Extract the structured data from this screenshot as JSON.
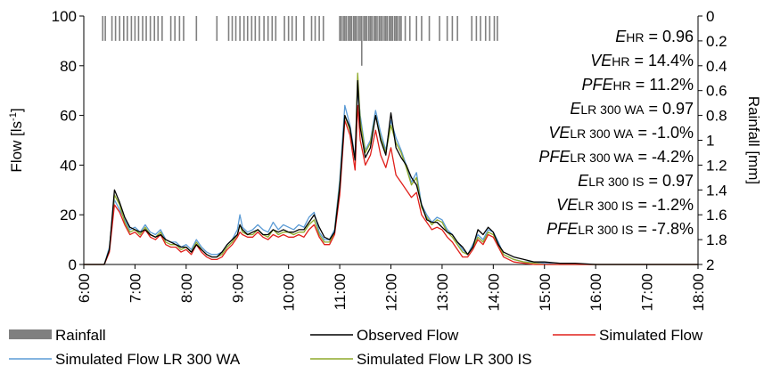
{
  "chart_data": {
    "type": "line",
    "y_axis_left": {
      "label": "Flow [ls",
      "label_sup": "-1",
      "label_tail": "]",
      "ylim": [
        0,
        100
      ],
      "ticks": [
        "0",
        "20",
        "40",
        "60",
        "80",
        "100"
      ]
    },
    "y_axis_right": {
      "label": "Rainfall [mm]",
      "ylim": [
        0,
        2
      ],
      "reversed": true,
      "ticks": [
        "0",
        "0.2",
        "0.4",
        "0.6",
        "0.8",
        "1",
        "1.2",
        "1.4",
        "1.6",
        "1.8",
        "2"
      ]
    },
    "x_axis": {
      "range_hours": [
        6,
        18
      ],
      "ticks": [
        "6:00",
        "7:00",
        "8:00",
        "9:00",
        "10:00",
        "11:00",
        "12:00",
        "13:00",
        "14:00",
        "15:00",
        "16:00",
        "17:00",
        "18:00"
      ],
      "rotated": true
    },
    "grid": false,
    "stats": [
      {
        "italic": "E",
        "sub": "HR",
        "value": " = 0.96"
      },
      {
        "italic": "VE",
        "sub": "HR",
        "value": " = 14.4%"
      },
      {
        "italic": "PFE",
        "sub": "HR",
        "value": " = 11.2%"
      },
      {
        "italic": "E",
        "sub": "LR 300 WA",
        "value": " = 0.97"
      },
      {
        "italic": "VE",
        "sub": "LR 300 WA",
        "value": " = -1.0%"
      },
      {
        "italic": "PFE",
        "sub": "LR 300 WA",
        "value": " = -4.2%"
      },
      {
        "italic": "E",
        "sub": "LR 300 IS",
        "value": " = 0.97"
      },
      {
        "italic": "VE",
        "sub": "LR 300 IS",
        "value": " = -1.2%"
      },
      {
        "italic": "PFE",
        "sub": "LR 300 IS",
        "value": " = -7.8%"
      }
    ],
    "legend": [
      {
        "name": "Rainfall",
        "color": "#808080",
        "kind": "bar"
      },
      {
        "name": "Observed Flow",
        "color": "#000000",
        "kind": "line"
      },
      {
        "name": "Simulated Flow",
        "color": "#e0201b",
        "kind": "line"
      },
      {
        "name": "Simulated Flow LR 300 WA",
        "color": "#5b9bd5",
        "kind": "line"
      },
      {
        "name": "Simulated Flow LR 300 IS",
        "color": "#8faa2b",
        "kind": "line"
      }
    ],
    "rainfall": {
      "name": "Rainfall",
      "color": "#808080",
      "times": [
        6.37,
        6.42,
        6.55,
        6.62,
        6.7,
        6.78,
        6.85,
        6.93,
        7.0,
        7.07,
        7.15,
        7.22,
        7.3,
        7.38,
        7.45,
        7.53,
        7.7,
        7.78,
        7.87,
        7.95,
        8.2,
        8.6,
        8.83,
        8.9,
        8.97,
        9.05,
        9.13,
        9.2,
        9.28,
        9.35,
        9.43,
        9.52,
        9.6,
        9.68,
        9.75,
        9.92,
        10.0,
        10.07,
        10.15,
        10.3,
        10.45,
        10.52,
        10.6,
        10.68,
        11.0,
        11.03,
        11.07,
        11.1,
        11.13,
        11.17,
        11.2,
        11.23,
        11.27,
        11.3,
        11.33,
        11.37,
        11.4,
        11.43,
        11.47,
        11.5,
        11.53,
        11.57,
        11.6,
        11.63,
        11.67,
        11.7,
        11.73,
        11.77,
        11.8,
        11.83,
        11.87,
        11.9,
        11.93,
        11.97,
        12.0,
        12.03,
        12.07,
        12.1,
        12.13,
        12.17,
        12.2,
        12.28,
        12.37,
        12.5,
        12.6,
        12.75,
        12.95,
        13.1,
        13.2,
        13.3,
        13.58,
        13.67,
        13.75,
        13.85,
        13.93,
        14.02,
        14.08
      ],
      "depths_mm": [
        0.2,
        0.2,
        0.2,
        0.2,
        0.2,
        0.2,
        0.2,
        0.2,
        0.2,
        0.2,
        0.2,
        0.2,
        0.2,
        0.2,
        0.2,
        0.2,
        0.2,
        0.2,
        0.2,
        0.2,
        0.2,
        0.2,
        0.2,
        0.2,
        0.2,
        0.2,
        0.2,
        0.2,
        0.2,
        0.2,
        0.2,
        0.2,
        0.2,
        0.2,
        0.2,
        0.2,
        0.2,
        0.2,
        0.2,
        0.2,
        0.2,
        0.2,
        0.2,
        0.2,
        0.2,
        0.2,
        0.2,
        0.2,
        0.2,
        0.2,
        0.2,
        0.2,
        0.2,
        0.2,
        0.2,
        0.2,
        0.2,
        0.4,
        0.2,
        0.2,
        0.2,
        0.2,
        0.2,
        0.2,
        0.2,
        0.2,
        0.2,
        0.2,
        0.2,
        0.2,
        0.2,
        0.2,
        0.2,
        0.2,
        0.2,
        0.2,
        0.2,
        0.2,
        0.2,
        0.2,
        0.2,
        0.2,
        0.2,
        0.2,
        0.2,
        0.2,
        0.2,
        0.2,
        0.2,
        0.2,
        0.2,
        0.2,
        0.2,
        0.2,
        0.2,
        0.2,
        0.2
      ]
    },
    "series": [
      {
        "name": "Simulated Flow LR 300 WA",
        "color": "#5b9bd5",
        "x": [
          6.0,
          6.4,
          6.5,
          6.6,
          6.7,
          6.8,
          6.9,
          7.0,
          7.1,
          7.2,
          7.3,
          7.4,
          7.5,
          7.6,
          7.7,
          7.8,
          7.9,
          8.0,
          8.1,
          8.2,
          8.3,
          8.4,
          8.5,
          8.6,
          8.7,
          8.8,
          8.9,
          9.0,
          9.05,
          9.1,
          9.2,
          9.3,
          9.4,
          9.5,
          9.6,
          9.7,
          9.8,
          9.9,
          10.0,
          10.1,
          10.2,
          10.3,
          10.4,
          10.5,
          10.6,
          10.7,
          10.8,
          10.9,
          11.0,
          11.1,
          11.2,
          11.3,
          11.35,
          11.4,
          11.5,
          11.6,
          11.7,
          11.8,
          11.9,
          12.0,
          12.1,
          12.2,
          12.3,
          12.4,
          12.5,
          12.6,
          12.7,
          12.8,
          12.9,
          13.0,
          13.1,
          13.2,
          13.3,
          13.4,
          13.5,
          13.6,
          13.7,
          13.8,
          13.9,
          14.0,
          14.1,
          14.2,
          14.4,
          14.6,
          14.8,
          15.0,
          15.3,
          15.6,
          16.0,
          17.0,
          18.0
        ],
        "y": [
          0,
          0,
          7,
          26,
          22,
          18,
          14,
          15,
          13,
          16,
          13,
          12,
          14,
          10,
          9,
          9,
          7,
          8,
          6,
          10,
          7,
          5,
          4,
          4,
          5,
          8,
          10,
          14,
          20,
          15,
          13,
          14,
          16,
          14,
          13,
          17,
          14,
          16,
          15,
          14,
          16,
          15,
          19,
          21,
          13,
          10,
          10,
          14,
          34,
          64,
          56,
          43,
          71,
          60,
          46,
          50,
          62,
          53,
          46,
          58,
          51,
          46,
          40,
          33,
          37,
          24,
          20,
          17,
          19,
          18,
          14,
          12,
          9,
          6,
          4,
          8,
          12,
          10,
          14,
          13,
          9,
          4,
          2,
          1,
          1,
          0.5,
          0,
          0,
          0,
          0,
          0
        ]
      },
      {
        "name": "Simulated Flow LR 300 IS",
        "color": "#8faa2b",
        "x": [
          6.0,
          6.4,
          6.5,
          6.6,
          6.7,
          6.8,
          6.9,
          7.0,
          7.1,
          7.2,
          7.3,
          7.4,
          7.5,
          7.6,
          7.7,
          7.8,
          7.9,
          8.0,
          8.1,
          8.2,
          8.3,
          8.4,
          8.5,
          8.6,
          8.7,
          8.8,
          8.9,
          9.0,
          9.05,
          9.1,
          9.2,
          9.3,
          9.4,
          9.5,
          9.6,
          9.7,
          9.8,
          9.9,
          10.0,
          10.1,
          10.2,
          10.3,
          10.4,
          10.5,
          10.6,
          10.7,
          10.8,
          10.9,
          11.0,
          11.1,
          11.2,
          11.3,
          11.35,
          11.4,
          11.5,
          11.6,
          11.7,
          11.8,
          11.9,
          12.0,
          12.1,
          12.2,
          12.3,
          12.4,
          12.5,
          12.6,
          12.7,
          12.8,
          12.9,
          13.0,
          13.1,
          13.2,
          13.3,
          13.4,
          13.5,
          13.6,
          13.7,
          13.8,
          13.9,
          14.0,
          14.1,
          14.2,
          14.4,
          14.6,
          14.8,
          15.0,
          15.3,
          15.6,
          16.0,
          17.0,
          18.0
        ],
        "y": [
          0,
          0,
          6,
          28,
          24,
          17,
          13,
          14,
          12,
          15,
          12,
          11,
          13,
          9,
          8,
          8,
          6,
          7,
          5,
          9,
          6,
          4,
          3,
          3,
          4,
          7,
          9,
          12,
          16,
          13,
          12,
          12,
          14,
          12,
          11,
          14,
          12,
          13,
          13,
          12,
          13,
          13,
          16,
          18,
          12,
          9,
          9,
          13,
          32,
          60,
          54,
          42,
          77,
          58,
          45,
          49,
          60,
          51,
          45,
          56,
          49,
          45,
          39,
          32,
          35,
          23,
          19,
          16,
          18,
          17,
          13,
          11,
          8,
          5,
          4,
          7,
          11,
          9,
          13,
          12,
          8,
          4,
          2,
          1,
          0.5,
          0,
          0,
          0,
          0,
          0,
          0
        ]
      },
      {
        "name": "Simulated Flow",
        "color": "#e0201b",
        "x": [
          6.0,
          6.4,
          6.5,
          6.6,
          6.7,
          6.8,
          6.9,
          7.0,
          7.1,
          7.2,
          7.3,
          7.4,
          7.5,
          7.6,
          7.7,
          7.8,
          7.9,
          8.0,
          8.1,
          8.2,
          8.3,
          8.4,
          8.5,
          8.6,
          8.7,
          8.8,
          8.9,
          9.0,
          9.05,
          9.1,
          9.2,
          9.3,
          9.4,
          9.5,
          9.6,
          9.7,
          9.8,
          9.9,
          10.0,
          10.1,
          10.2,
          10.3,
          10.4,
          10.5,
          10.6,
          10.7,
          10.8,
          10.9,
          11.0,
          11.1,
          11.2,
          11.3,
          11.35,
          11.4,
          11.5,
          11.6,
          11.7,
          11.8,
          11.9,
          12.0,
          12.1,
          12.2,
          12.3,
          12.4,
          12.5,
          12.6,
          12.7,
          12.8,
          12.9,
          13.0,
          13.1,
          13.2,
          13.3,
          13.4,
          13.5,
          13.6,
          13.7,
          13.8,
          13.9,
          14.0,
          14.1,
          14.2,
          14.4,
          14.6,
          14.8,
          15.0,
          15.3,
          15.6,
          16.0,
          17.0,
          18.0
        ],
        "y": [
          0,
          0,
          5,
          24,
          21,
          16,
          12,
          13,
          11,
          14,
          11,
          10,
          12,
          8,
          7,
          7,
          5,
          6,
          4,
          8,
          5,
          3,
          2,
          2,
          3,
          6,
          8,
          11,
          13,
          12,
          11,
          11,
          13,
          11,
          10,
          12,
          11,
          12,
          11,
          11,
          12,
          11,
          14,
          16,
          11,
          8,
          8,
          12,
          28,
          58,
          52,
          38,
          64,
          50,
          40,
          44,
          54,
          44,
          39,
          47,
          36,
          33,
          30,
          27,
          29,
          20,
          17,
          14,
          15,
          14,
          11,
          9,
          6,
          3,
          3,
          6,
          10,
          8,
          12,
          11,
          7,
          3,
          1,
          0.5,
          0,
          0,
          0,
          0,
          0,
          0,
          0
        ]
      },
      {
        "name": "Observed Flow",
        "color": "#000000",
        "x": [
          6.0,
          6.4,
          6.5,
          6.6,
          6.7,
          6.8,
          6.9,
          7.0,
          7.1,
          7.2,
          7.3,
          7.4,
          7.5,
          7.6,
          7.7,
          7.8,
          7.9,
          8.0,
          8.1,
          8.2,
          8.3,
          8.4,
          8.5,
          8.6,
          8.7,
          8.8,
          8.9,
          9.0,
          9.05,
          9.1,
          9.2,
          9.3,
          9.4,
          9.5,
          9.6,
          9.7,
          9.8,
          9.9,
          10.0,
          10.1,
          10.2,
          10.3,
          10.4,
          10.5,
          10.6,
          10.7,
          10.8,
          10.9,
          11.0,
          11.1,
          11.2,
          11.3,
          11.35,
          11.4,
          11.5,
          11.6,
          11.7,
          11.8,
          11.9,
          12.0,
          12.1,
          12.2,
          12.3,
          12.4,
          12.5,
          12.6,
          12.7,
          12.8,
          12.9,
          13.0,
          13.1,
          13.2,
          13.3,
          13.4,
          13.5,
          13.6,
          13.7,
          13.8,
          13.9,
          14.0,
          14.1,
          14.2,
          14.4,
          14.6,
          14.8,
          15.0,
          15.3,
          15.6,
          16.0,
          17.0,
          18.0
        ],
        "y": [
          0,
          0,
          6,
          30,
          25,
          19,
          15,
          14,
          13,
          14,
          12,
          11,
          12,
          10,
          9,
          8,
          7,
          7,
          5,
          8,
          6,
          4,
          3,
          3,
          5,
          8,
          10,
          12,
          16,
          14,
          12,
          13,
          14,
          12,
          12,
          14,
          13,
          14,
          13,
          13,
          14,
          14,
          17,
          20,
          15,
          11,
          10,
          13,
          31,
          60,
          55,
          42,
          74,
          55,
          43,
          47,
          60,
          50,
          44,
          61,
          47,
          43,
          40,
          35,
          32,
          24,
          18,
          17,
          17,
          15,
          13,
          12,
          9,
          7,
          4,
          7,
          14,
          12,
          15,
          13,
          8,
          5,
          3,
          2,
          1,
          1,
          0.5,
          0.5,
          0,
          0,
          0
        ]
      }
    ]
  }
}
